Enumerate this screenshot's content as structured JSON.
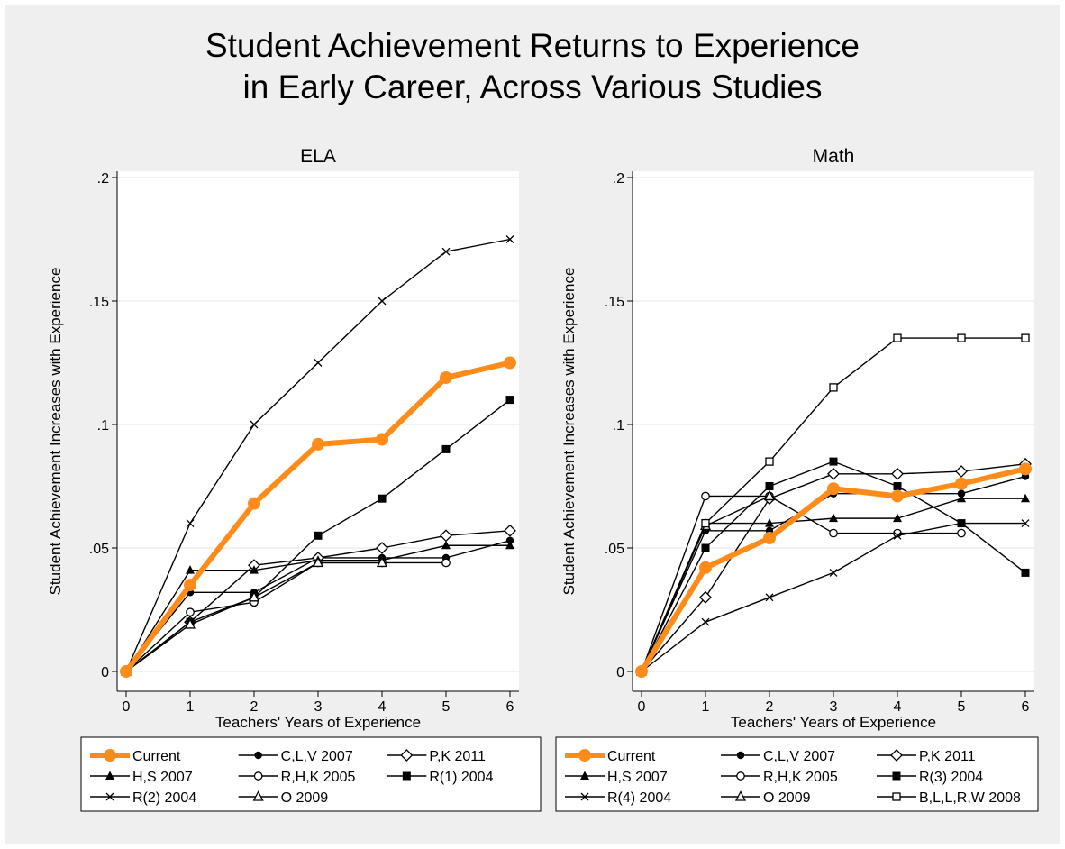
{
  "title_lines": [
    "Student Achievement Returns to Experience",
    "in Early Career, Across Various Studies"
  ],
  "colors": {
    "current": "#ff8c1a",
    "series": "#000000",
    "background": "#efefef",
    "plot_region": "#ffffff"
  },
  "chart_data": [
    {
      "type": "line",
      "title": "ELA",
      "xlabel": "Teachers' Years of Experience",
      "ylabel": "Student Achievement Increases with Experience",
      "x_ticks": [
        0,
        1,
        2,
        3,
        4,
        5,
        6
      ],
      "x_tick_labels": [
        "0",
        "1",
        "2",
        "3",
        "4",
        "5",
        "6"
      ],
      "y_ticks": [
        0,
        0.05,
        0.1,
        0.15,
        0.2
      ],
      "y_tick_labels": [
        "0",
        ".05",
        ".1",
        ".15",
        ".2"
      ],
      "xlim": [
        0,
        6
      ],
      "ylim": [
        0,
        0.2
      ],
      "grid": "horizontal",
      "legend": "bottom",
      "series": [
        {
          "name": "Current",
          "marker": "circle",
          "style": "thick-orange",
          "x": [
            0,
            1,
            2,
            3,
            4,
            5,
            6
          ],
          "y": [
            0,
            0.035,
            0.068,
            0.092,
            0.094,
            0.119,
            0.125
          ]
        },
        {
          "name": "C,L,V 2007",
          "marker": "filled-circle",
          "x": [
            0,
            1,
            2,
            3,
            4,
            5,
            6
          ],
          "y": [
            0,
            0.032,
            0.032,
            0.046,
            0.046,
            0.046,
            0.053
          ]
        },
        {
          "name": "P,K 2011",
          "marker": "hollow-diamond",
          "x": [
            0,
            1,
            2,
            3,
            4,
            5,
            6
          ],
          "y": [
            0,
            0.02,
            0.043,
            0.046,
            0.05,
            0.055,
            0.057
          ]
        },
        {
          "name": "H,S 2007",
          "marker": "filled-triangle",
          "x": [
            0,
            1,
            2,
            3,
            4,
            5,
            6
          ],
          "y": [
            0,
            0.041,
            0.041,
            0.045,
            0.045,
            0.051,
            0.051
          ]
        },
        {
          "name": "R,H,K 2005",
          "marker": "hollow-circle",
          "x": [
            0,
            1,
            2,
            3,
            4,
            5,
            6
          ],
          "y": [
            0,
            0.024,
            0.028,
            0.044,
            0.044,
            0.044,
            null
          ]
        },
        {
          "name": "R(1) 2004",
          "marker": "filled-square",
          "x": [
            0,
            1,
            2,
            3,
            4,
            5,
            6
          ],
          "y": [
            0,
            0.02,
            0.03,
            0.055,
            0.07,
            0.09,
            0.11
          ]
        },
        {
          "name": "R(2) 2004",
          "marker": "x",
          "x": [
            0,
            1,
            2,
            3,
            4,
            5,
            6
          ],
          "y": [
            0,
            0.06,
            0.1,
            0.125,
            0.15,
            0.17,
            0.175
          ]
        },
        {
          "name": "O 2009",
          "marker": "hollow-triangle",
          "x": [
            0,
            1,
            2,
            3,
            4,
            5,
            6
          ],
          "y": [
            0,
            0.019,
            0.03,
            0.044,
            0.044,
            null,
            null
          ]
        }
      ],
      "legend_layout": [
        [
          "Current",
          "C,L,V 2007",
          "P,K 2011"
        ],
        [
          "H,S 2007",
          "R,H,K 2005",
          "R(1) 2004"
        ],
        [
          "R(2) 2004",
          "O 2009"
        ]
      ]
    },
    {
      "type": "line",
      "title": "Math",
      "xlabel": "Teachers' Years of Experience",
      "ylabel": "Student Achievement Increases with Experience",
      "x_ticks": [
        0,
        1,
        2,
        3,
        4,
        5,
        6
      ],
      "x_tick_labels": [
        "0",
        "1",
        "2",
        "3",
        "4",
        "5",
        "6"
      ],
      "y_ticks": [
        0,
        0.05,
        0.1,
        0.15,
        0.2
      ],
      "y_tick_labels": [
        "0",
        ".05",
        ".1",
        ".15",
        ".2"
      ],
      "xlim": [
        0,
        6
      ],
      "ylim": [
        0,
        0.2
      ],
      "grid": "horizontal",
      "legend": "bottom",
      "series": [
        {
          "name": "Current",
          "marker": "circle",
          "style": "thick-orange",
          "x": [
            0,
            1,
            2,
            3,
            4,
            5,
            6
          ],
          "y": [
            0,
            0.042,
            0.054,
            0.074,
            0.071,
            0.076,
            0.082
          ]
        },
        {
          "name": "C,L,V 2007",
          "marker": "filled-circle",
          "x": [
            0,
            1,
            2,
            3,
            4,
            5,
            6
          ],
          "y": [
            0,
            0.057,
            0.057,
            0.072,
            0.072,
            0.072,
            0.079
          ]
        },
        {
          "name": "P,K 2011",
          "marker": "hollow-diamond",
          "x": [
            0,
            1,
            2,
            3,
            4,
            5,
            6
          ],
          "y": [
            0,
            0.03,
            0.07,
            0.08,
            0.08,
            0.081,
            0.084
          ]
        },
        {
          "name": "H,S 2007",
          "marker": "filled-triangle",
          "x": [
            0,
            1,
            2,
            3,
            4,
            5,
            6
          ],
          "y": [
            0,
            0.06,
            0.06,
            0.062,
            0.062,
            0.07,
            0.07
          ]
        },
        {
          "name": "R,H,K 2005",
          "marker": "hollow-circle",
          "x": [
            0,
            1,
            2,
            3,
            4,
            5,
            6
          ],
          "y": [
            0,
            0.071,
            0.071,
            0.056,
            0.056,
            0.056,
            null
          ]
        },
        {
          "name": "R(3) 2004",
          "marker": "filled-square",
          "x": [
            0,
            1,
            2,
            3,
            4,
            5,
            6
          ],
          "y": [
            0,
            0.05,
            0.075,
            0.085,
            0.075,
            0.06,
            0.04
          ]
        },
        {
          "name": "R(4) 2004",
          "marker": "x",
          "x": [
            0,
            1,
            2,
            3,
            4,
            5,
            6
          ],
          "y": [
            0,
            0.02,
            0.03,
            0.04,
            0.055,
            0.06,
            0.06
          ]
        },
        {
          "name": "O 2009",
          "marker": "hollow-triangle",
          "x": [
            0,
            1,
            2,
            3,
            4,
            5,
            6
          ],
          "y": [
            0,
            0.059,
            0.071,
            null,
            null,
            null,
            null
          ]
        },
        {
          "name": "B,L,L,R,W 2008",
          "marker": "hollow-square",
          "x": [
            0,
            1,
            2,
            3,
            4,
            5,
            6
          ],
          "y": [
            0,
            0.06,
            0.085,
            0.115,
            0.135,
            0.135,
            0.135
          ]
        }
      ],
      "legend_layout": [
        [
          "Current",
          "C,L,V 2007",
          "P,K 2011"
        ],
        [
          "H,S 2007",
          "R,H,K 2005",
          "R(3) 2004"
        ],
        [
          "R(4) 2004",
          "O 2009",
          "B,L,L,R,W 2008"
        ]
      ]
    }
  ]
}
